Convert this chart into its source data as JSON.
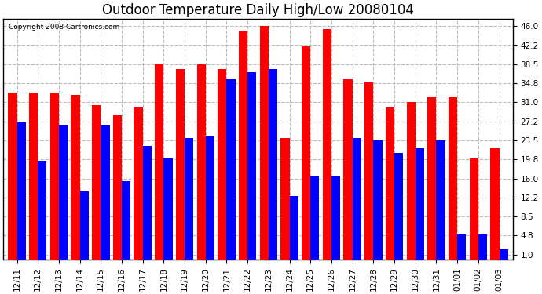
{
  "title": "Outdoor Temperature Daily High/Low 20080104",
  "copyright": "Copyright 2008 Cartronics.com",
  "categories": [
    "12/11",
    "12/12",
    "12/13",
    "12/14",
    "12/15",
    "12/16",
    "12/17",
    "12/18",
    "12/19",
    "12/20",
    "12/21",
    "12/22",
    "12/23",
    "12/24",
    "12/25",
    "12/26",
    "12/27",
    "12/28",
    "12/29",
    "12/30",
    "12/31",
    "01/01",
    "01/02",
    "01/03"
  ],
  "highs": [
    33.0,
    33.0,
    33.0,
    32.5,
    30.5,
    28.5,
    30.0,
    38.5,
    37.5,
    38.5,
    37.5,
    45.0,
    46.0,
    24.0,
    42.0,
    45.5,
    35.5,
    35.0,
    30.0,
    31.0,
    32.0,
    32.0,
    20.0,
    22.0
  ],
  "lows": [
    27.0,
    19.5,
    26.5,
    13.5,
    26.5,
    15.5,
    22.5,
    20.0,
    24.0,
    24.5,
    35.5,
    37.0,
    37.5,
    12.5,
    16.5,
    16.5,
    24.0,
    23.5,
    21.0,
    22.0,
    23.5,
    5.0,
    5.0,
    2.0
  ],
  "high_color": "#ff0000",
  "low_color": "#0000ff",
  "bg_color": "#ffffff",
  "plot_bg_color": "#ffffff",
  "grid_color": "#bbbbbb",
  "yticks": [
    1.0,
    4.8,
    8.5,
    12.2,
    16.0,
    19.8,
    23.5,
    27.2,
    31.0,
    34.8,
    38.5,
    42.2,
    46.0
  ],
  "ymin": 0.0,
  "ymax": 47.5,
  "bar_width": 0.42,
  "title_fontsize": 12,
  "tick_fontsize": 7.5,
  "copyright_fontsize": 6.5
}
